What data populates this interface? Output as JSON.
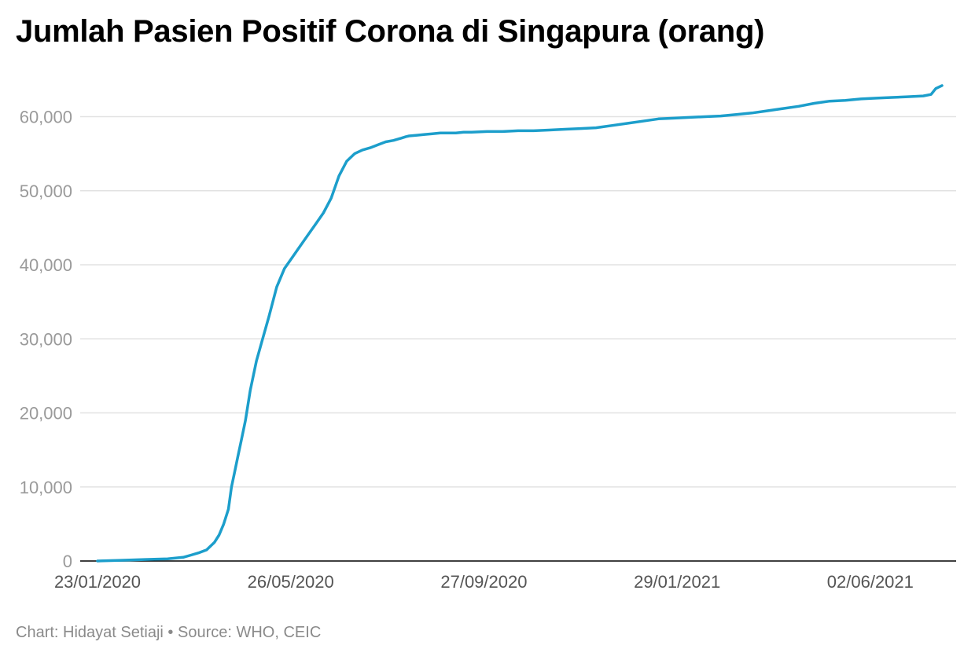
{
  "title": "Jumlah Pasien Positif Corona di Singapura (orang)",
  "footer": {
    "credit": "Chart: Hidayat Setiaji",
    "separator": " • ",
    "source": "Source: WHO, CEIC"
  },
  "colors": {
    "line": "#1c9ecb",
    "grid": "#e2e2e2",
    "axis": "#000000",
    "tick_label": "#9a9a9a",
    "x_tick_label": "#555555"
  },
  "chart_data": {
    "type": "line",
    "title": "Jumlah Pasien Positif Corona di Singapura (orang)",
    "xlabel": "",
    "ylabel": "",
    "ylim": [
      0,
      65000
    ],
    "xlim": [
      0,
      542
    ],
    "grid": true,
    "y_ticks": [
      {
        "value": 0,
        "label": "0"
      },
      {
        "value": 10000,
        "label": "10,000"
      },
      {
        "value": 20000,
        "label": "20,000"
      },
      {
        "value": 30000,
        "label": "30,000"
      },
      {
        "value": 40000,
        "label": "40,000"
      },
      {
        "value": 50000,
        "label": "50,000"
      },
      {
        "value": 60000,
        "label": "60,000"
      }
    ],
    "x_ticks": [
      {
        "day": 0,
        "label": "23/01/2020"
      },
      {
        "day": 124,
        "label": "26/05/2020"
      },
      {
        "day": 248,
        "label": "27/09/2020"
      },
      {
        "day": 372,
        "label": "29/01/2021"
      },
      {
        "day": 496,
        "label": "02/06/2021"
      }
    ],
    "series": [
      {
        "name": "Jumlah Pasien Positif",
        "x": [
          0,
          15,
          30,
          45,
          55,
          60,
          65,
          70,
          75,
          78,
          81,
          84,
          86,
          88,
          90,
          92,
          95,
          98,
          102,
          106,
          110,
          115,
          120,
          125,
          130,
          135,
          140,
          145,
          150,
          155,
          160,
          165,
          170,
          175,
          180,
          185,
          190,
          195,
          198,
          200,
          205,
          210,
          215,
          220,
          225,
          230,
          235,
          240,
          250,
          260,
          270,
          280,
          290,
          300,
          310,
          320,
          330,
          340,
          350,
          360,
          370,
          380,
          390,
          400,
          410,
          420,
          430,
          440,
          450,
          460,
          470,
          480,
          490,
          500,
          510,
          520,
          530,
          535,
          538,
          542
        ],
        "y": [
          0,
          100,
          200,
          300,
          500,
          800,
          1100,
          1500,
          2500,
          3500,
          5000,
          7000,
          10000,
          12000,
          14000,
          16000,
          19000,
          23000,
          27000,
          30000,
          33000,
          37000,
          39500,
          41000,
          42500,
          44000,
          45500,
          47000,
          49000,
          52000,
          54000,
          55000,
          55500,
          55800,
          56200,
          56600,
          56800,
          57100,
          57300,
          57400,
          57500,
          57600,
          57700,
          57800,
          57800,
          57800,
          57900,
          57900,
          58000,
          58000,
          58100,
          58100,
          58200,
          58300,
          58400,
          58500,
          58800,
          59100,
          59400,
          59700,
          59800,
          59900,
          60000,
          60100,
          60300,
          60500,
          60800,
          61100,
          61400,
          61800,
          62100,
          62200,
          62400,
          62500,
          62600,
          62700,
          62800,
          63000,
          63800,
          64200
        ]
      }
    ]
  }
}
